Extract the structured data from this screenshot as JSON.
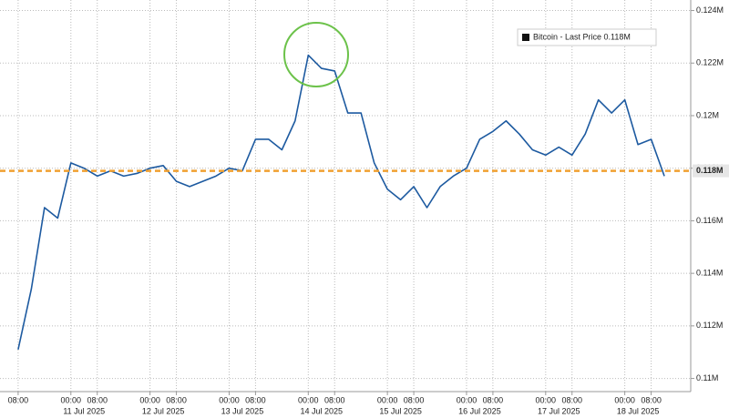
{
  "chart_data": {
    "type": "line",
    "series": [
      {
        "name": "Bitcoin - Last Price 0.118M",
        "color": "#1d5aa0",
        "values": [
          0.1111,
          0.1134,
          0.1165,
          0.1161,
          0.1182,
          0.118,
          0.1177,
          0.1179,
          0.1177,
          0.1178,
          0.118,
          0.1181,
          0.1175,
          0.1173,
          0.1175,
          0.1177,
          0.118,
          0.1179,
          0.1191,
          0.1191,
          0.1187,
          0.1198,
          0.1223,
          0.1218,
          0.1217,
          0.1201,
          0.1201,
          0.1182,
          0.1172,
          0.1168,
          0.1173,
          0.1165,
          0.1173,
          0.1177,
          0.118,
          0.1191,
          0.1194,
          0.1198,
          0.1193,
          0.1187,
          0.1185,
          0.1188,
          0.1185,
          0.1193,
          0.1206,
          0.1201,
          0.1206,
          0.1189,
          0.1191,
          0.1177
        ]
      }
    ],
    "x": [
      "10 Jul 2025 08:00",
      "10 Jul 2025 12:00",
      "10 Jul 2025 16:00",
      "10 Jul 2025 20:00",
      "11 Jul 2025 00:00",
      "11 Jul 2025 04:00",
      "11 Jul 2025 08:00",
      "11 Jul 2025 12:00",
      "11 Jul 2025 16:00",
      "11 Jul 2025 20:00",
      "12 Jul 2025 00:00",
      "12 Jul 2025 04:00",
      "12 Jul 2025 08:00",
      "12 Jul 2025 12:00",
      "12 Jul 2025 16:00",
      "12 Jul 2025 20:00",
      "13 Jul 2025 00:00",
      "13 Jul 2025 04:00",
      "13 Jul 2025 08:00",
      "13 Jul 2025 12:00",
      "13 Jul 2025 16:00",
      "13 Jul 2025 20:00",
      "14 Jul 2025 00:00",
      "14 Jul 2025 04:00",
      "14 Jul 2025 08:00",
      "14 Jul 2025 12:00",
      "14 Jul 2025 16:00",
      "14 Jul 2025 20:00",
      "15 Jul 2025 00:00",
      "15 Jul 2025 04:00",
      "15 Jul 2025 08:00",
      "15 Jul 2025 12:00",
      "15 Jul 2025 16:00",
      "15 Jul 2025 20:00",
      "16 Jul 2025 00:00",
      "16 Jul 2025 04:00",
      "16 Jul 2025 08:00",
      "16 Jul 2025 12:00",
      "16 Jul 2025 16:00",
      "16 Jul 2025 20:00",
      "17 Jul 2025 00:00",
      "17 Jul 2025 04:00",
      "17 Jul 2025 08:00",
      "17 Jul 2025 12:00",
      "17 Jul 2025 16:00",
      "17 Jul 2025 20:00",
      "18 Jul 2025 00:00",
      "18 Jul 2025 04:00",
      "18 Jul 2025 08:00",
      "18 Jul 2025 12:00"
    ],
    "xlim": [
      "10 Jul 2025 02:30",
      "18 Jul 2025 20:00"
    ],
    "xticks": [
      {
        "value": "10 Jul 2025 08:00",
        "label": "08:00"
      },
      {
        "value": "11 Jul 2025 00:00",
        "label": "00:00"
      },
      {
        "value": "11 Jul 2025 08:00",
        "label": "08:00"
      },
      {
        "value": "12 Jul 2025 00:00",
        "label": "00:00"
      },
      {
        "value": "12 Jul 2025 08:00",
        "label": "08:00"
      },
      {
        "value": "13 Jul 2025 00:00",
        "label": "00:00"
      },
      {
        "value": "13 Jul 2025 08:00",
        "label": "08:00"
      },
      {
        "value": "14 Jul 2025 00:00",
        "label": "00:00"
      },
      {
        "value": "14 Jul 2025 08:00",
        "label": "08:00"
      },
      {
        "value": "15 Jul 2025 00:00",
        "label": "00:00"
      },
      {
        "value": "15 Jul 2025 08:00",
        "label": "08:00"
      },
      {
        "value": "16 Jul 2025 00:00",
        "label": "00:00"
      },
      {
        "value": "16 Jul 2025 08:00",
        "label": "08:00"
      },
      {
        "value": "17 Jul 2025 00:00",
        "label": "00:00"
      },
      {
        "value": "17 Jul 2025 08:00",
        "label": "08:00"
      },
      {
        "value": "18 Jul 2025 00:00",
        "label": "00:00"
      },
      {
        "value": "18 Jul 2025 08:00",
        "label": "08:00"
      }
    ],
    "date_labels": [
      "11 Jul 2025",
      "12 Jul 2025",
      "13 Jul 2025",
      "14 Jul 2025",
      "15 Jul 2025",
      "16 Jul 2025",
      "17 Jul 2025",
      "18 Jul 2025"
    ],
    "ylim": [
      0.1095,
      0.1244
    ],
    "yticks": [
      {
        "value": 0.11,
        "label": "0.11M"
      },
      {
        "value": 0.112,
        "label": "0.112M"
      },
      {
        "value": 0.114,
        "label": "0.114M"
      },
      {
        "value": 0.116,
        "label": "0.116M"
      },
      {
        "value": 0.118,
        "label": "0.118M"
      },
      {
        "value": 0.12,
        "label": "0.12M"
      },
      {
        "value": 0.122,
        "label": "0.122M"
      },
      {
        "value": 0.124,
        "label": "0.124M"
      }
    ],
    "reference_line": {
      "value": 0.1179,
      "label": "0.118M",
      "color": "#f0a030"
    },
    "grid": true,
    "legend": "upper right"
  }
}
